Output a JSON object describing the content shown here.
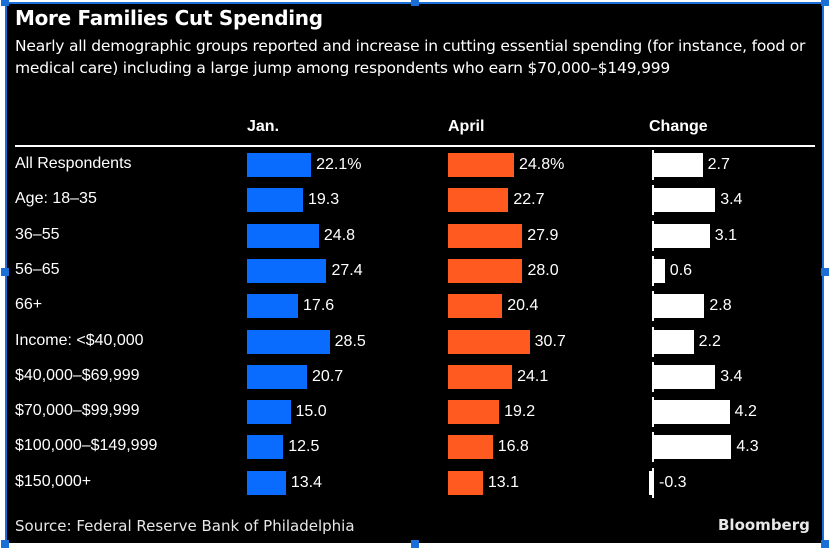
{
  "header": {
    "title": "More Families Cut Spending",
    "subtitle": "Nearly all demographic groups reported and increase in cutting essential spending (for instance, food or medical care) including a large jump among respondents who earn $70,000–$149,999"
  },
  "footer": {
    "source": "Source: Federal Reserve Bank of Philadelphia",
    "brand": "Bloomberg"
  },
  "colors": {
    "jan": "#0a6cff",
    "april": "#ff5a1f",
    "change": "#ffffff",
    "background": "#000000"
  },
  "chart_data": {
    "type": "bar",
    "title": "More Families Cut Spending",
    "subtitle": "Nearly all demographic groups reported and increase in cutting essential spending (for instance, food or medical care) including a large jump among respondents who earn $70,000–$149,999",
    "orientation": "horizontal",
    "categories": [
      "All Respondents",
      "Age: 18–35",
      "36–55",
      "56–65",
      "66+",
      "Income: <$40,000",
      "$40,000–$69,999",
      "$70,000–$99,999",
      "$100,000–$149,999",
      "$150,000+"
    ],
    "series": [
      {
        "name": "Jan.",
        "values": [
          22.1,
          19.3,
          24.8,
          27.4,
          17.6,
          28.5,
          20.7,
          15.0,
          12.5,
          13.4
        ],
        "labels": [
          "22.1%",
          "19.3",
          "24.8",
          "27.4",
          "17.6",
          "28.5",
          "20.7",
          "15.0",
          "12.5",
          "13.4"
        ]
      },
      {
        "name": "April",
        "values": [
          24.8,
          22.7,
          27.9,
          28.0,
          20.4,
          30.7,
          24.1,
          19.2,
          16.8,
          13.1
        ],
        "labels": [
          "24.8%",
          "22.7",
          "27.9",
          "28.0",
          "20.4",
          "30.7",
          "24.1",
          "19.2",
          "16.8",
          "13.1"
        ]
      },
      {
        "name": "Change",
        "values": [
          2.7,
          3.4,
          3.1,
          0.6,
          2.8,
          2.2,
          3.4,
          4.2,
          4.3,
          -0.3
        ],
        "labels": [
          "2.7",
          "3.4",
          "3.1",
          "0.6",
          "2.8",
          "2.2",
          "3.4",
          "4.2",
          "4.3",
          "-0.3"
        ]
      }
    ],
    "xlabel": "",
    "ylabel": "",
    "unit": "%",
    "grid": false,
    "legend": "column headers",
    "source": "Source: Federal Reserve Bank of Philadelphia"
  }
}
